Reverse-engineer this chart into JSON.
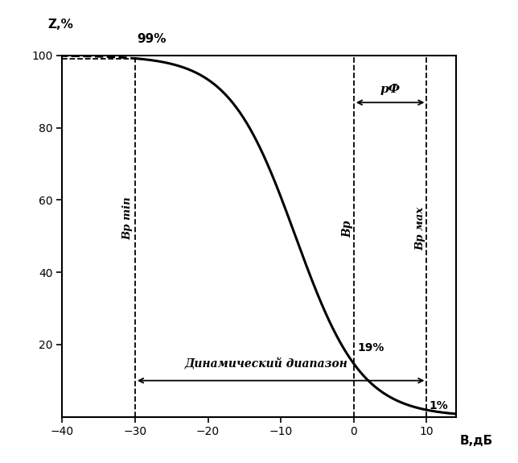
{
  "title": "",
  "xlabel": "В,дБ",
  "ylabel": "Z,%",
  "xlim": [
    -40,
    14
  ],
  "ylim": [
    0,
    100
  ],
  "xticks": [
    -40,
    -30,
    -20,
    -10,
    0,
    10
  ],
  "yticks": [
    20,
    40,
    60,
    80,
    100
  ],
  "bg_color": "#ffffff",
  "curve_color": "#000000",
  "vline_color": "#000000",
  "annotation_color": "#000000",
  "dashed_color": "#000000",
  "sigmoid_x0": -8,
  "sigmoid_k": 0.22,
  "vline_bpmin": -30,
  "vline_bp": 0,
  "vline_bpmax": 10,
  "label_99": "99%",
  "label_19": "19%",
  "label_1": "1%",
  "label_bpmin": "Вр min",
  "label_bp": "Вр",
  "label_bpmax": "Вр мах",
  "label_pF": "рФ",
  "label_dynrange": "Динамический диапазон"
}
